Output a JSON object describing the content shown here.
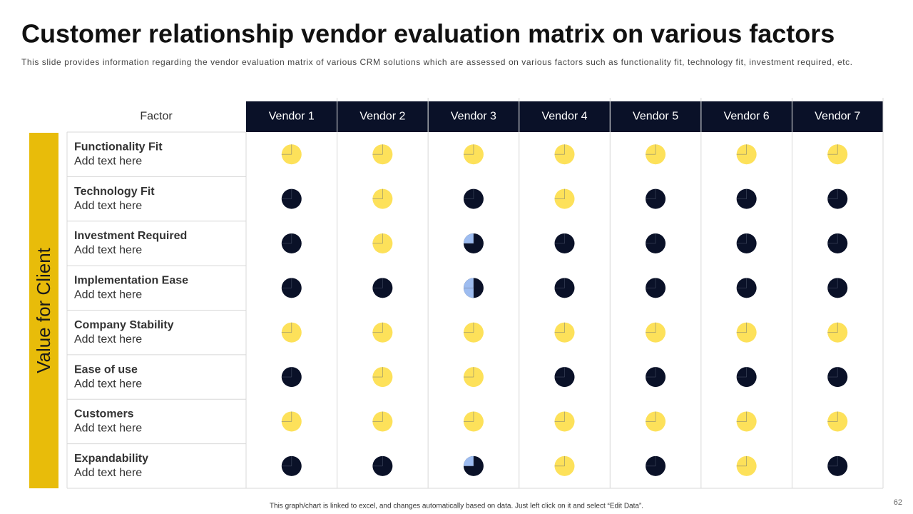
{
  "header": {
    "title": "Customer relationship vendor evaluation matrix on various factors",
    "subtitle": "This slide provides information regarding the vendor evaluation matrix of various CRM solutions which are assessed on various factors such as functionality fit, technology fit, investment required, etc."
  },
  "table": {
    "side_label": "Value for Client",
    "columns": [
      "Factor",
      "Vendor 1",
      "Vendor 2",
      "Vendor 3",
      "Vendor 4",
      "Vendor 5",
      "Vendor 6",
      "Vendor 7"
    ],
    "rows": [
      {
        "name": "Functionality Fit",
        "note": "Add text here",
        "cells": [
          "#fde15a",
          "#fde15a",
          "#fde15a",
          "#fde15a",
          "#fde15a",
          "#fde15a",
          "#fde15a"
        ]
      },
      {
        "name": "Technology Fit",
        "note": "Add text here",
        "cells": [
          "#0a1128",
          "#fde15a",
          "#0a1128",
          "#fde15a",
          "#0a1128",
          "#0a1128",
          "#0a1128"
        ]
      },
      {
        "name": "Investment Required",
        "note": "Add text here",
        "cells": [
          "#0a1128",
          "#fde15a",
          {
            "color": "#0a1128",
            "accent": "#9dbcf0",
            "accent_share": 0.25
          },
          "#0a1128",
          "#0a1128",
          "#0a1128",
          "#0a1128"
        ]
      },
      {
        "name": "Implementation Ease",
        "note": "Add text here",
        "cells": [
          "#0a1128",
          "#0a1128",
          {
            "color": "#0a1128",
            "accent": "#9dbcf0",
            "accent_share": 0.5
          },
          "#0a1128",
          "#0a1128",
          "#0a1128",
          "#0a1128"
        ]
      },
      {
        "name": "Company Stability",
        "note": "Add text here",
        "cells": [
          "#fde15a",
          "#fde15a",
          "#fde15a",
          "#fde15a",
          "#fde15a",
          "#fde15a",
          "#fde15a"
        ]
      },
      {
        "name": "Ease of use",
        "note": "Add text here",
        "cells": [
          "#0a1128",
          "#fde15a",
          "#fde15a",
          "#0a1128",
          "#0a1128",
          "#0a1128",
          "#0a1128"
        ]
      },
      {
        "name": "Customers",
        "note": "Add text here",
        "cells": [
          "#fde15a",
          "#fde15a",
          "#fde15a",
          "#fde15a",
          "#fde15a",
          "#fde15a",
          "#fde15a"
        ]
      },
      {
        "name": "Expandability",
        "note": "Add text here",
        "cells": [
          "#0a1128",
          "#0a1128",
          {
            "color": "#0a1128",
            "accent": "#9dbcf0",
            "accent_share": 0.25
          },
          "#fde15a",
          "#0a1128",
          "#fde15a",
          "#0a1128"
        ]
      }
    ]
  },
  "footer": {
    "note": "This graph/chart is linked to excel, and changes automatically based on data. Just left click on it and select “Edit Data”.",
    "page": 62
  }
}
